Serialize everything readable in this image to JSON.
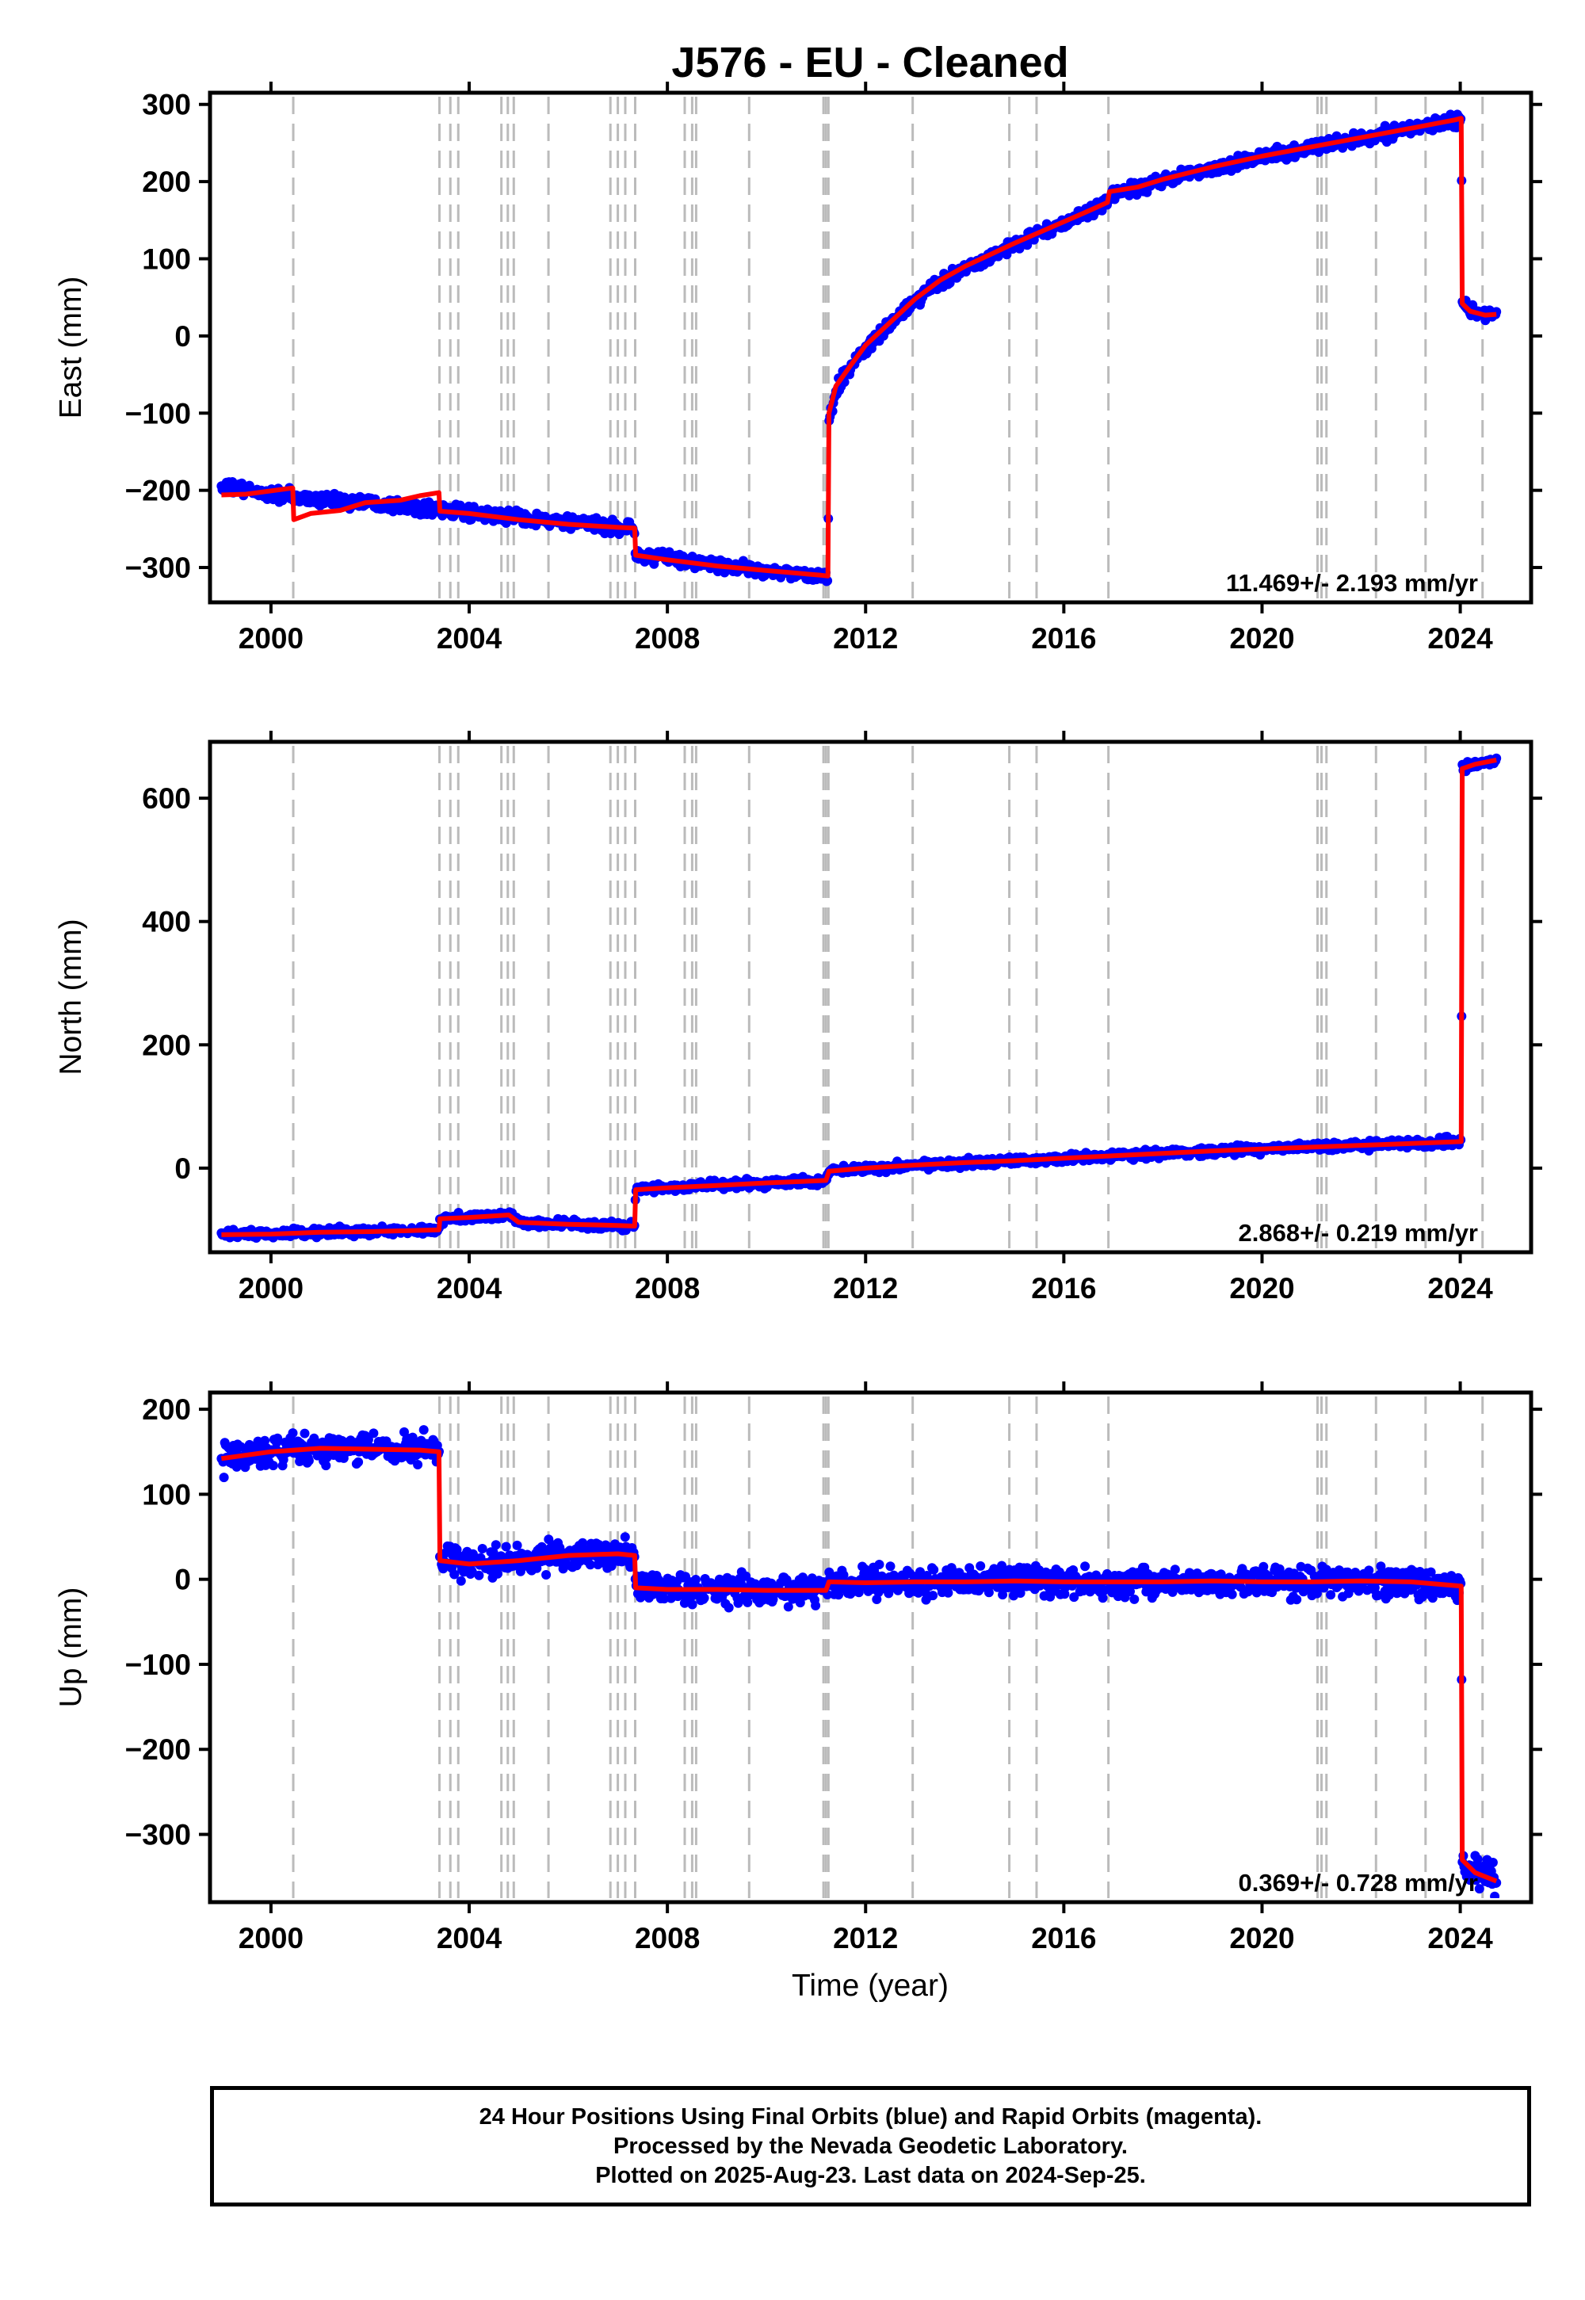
{
  "chart_data": {
    "type": "scatter",
    "title": "J576  - EU - Cleaned",
    "xlabel": "Time (year)",
    "xlim": [
      1998.85,
      2025.35
    ],
    "x_ticks": [
      2000,
      2004,
      2008,
      2012,
      2016,
      2020,
      2024
    ],
    "x_tick_labels": [
      "2000",
      "2004",
      "2008",
      "2012",
      "2016",
      "2020",
      "2024"
    ],
    "event_lines": [
      2000.45,
      2003.4,
      2003.62,
      2003.78,
      2004.65,
      2004.78,
      2004.9,
      2005.6,
      2006.85,
      2007.0,
      2007.15,
      2007.35,
      2008.35,
      2008.5,
      2008.58,
      2009.65,
      2011.15,
      2011.2,
      2011.25,
      2012.95,
      2014.9,
      2015.45,
      2016.9,
      2021.12,
      2021.2,
      2021.3,
      2022.3,
      2023.3,
      2024.45
    ],
    "series_colors": {
      "data": "#0000ff",
      "model": "#ff0000",
      "event_lines": "#bbbbbb"
    },
    "panels": [
      {
        "ylabel": "East (mm)",
        "ylim": [
          -340,
          310
        ],
        "y_ticks": [
          300,
          200,
          100,
          0,
          -100,
          -200,
          -300
        ],
        "y_tick_labels": [
          "300",
          "200",
          "100",
          "0",
          "−100",
          "−200",
          "−300"
        ],
        "rate_label": "11.469+/- 2.193 mm/yr",
        "noise": 6,
        "data": [
          [
            1999.0,
            -196
          ],
          [
            1999.5,
            -200
          ],
          [
            2000.0,
            -205
          ],
          [
            2000.44,
            -208
          ],
          [
            2000.46,
            -210
          ],
          [
            2001.0,
            -212
          ],
          [
            2002.0,
            -215
          ],
          [
            2003.0,
            -222
          ],
          [
            2003.39,
            -224
          ],
          [
            2003.41,
            -226
          ],
          [
            2004.0,
            -230
          ],
          [
            2005.0,
            -235
          ],
          [
            2006.0,
            -242
          ],
          [
            2007.0,
            -248
          ],
          [
            2007.34,
            -250
          ],
          [
            2007.36,
            -285
          ],
          [
            2008.0,
            -288
          ],
          [
            2009.0,
            -297
          ],
          [
            2010.0,
            -305
          ],
          [
            2011.1,
            -312
          ],
          [
            2011.24,
            -313
          ],
          [
            2011.26,
            -115
          ],
          [
            2011.4,
            -70
          ],
          [
            2011.7,
            -40
          ],
          [
            2012.0,
            -15
          ],
          [
            2012.5,
            15
          ],
          [
            2013.0,
            45
          ],
          [
            2013.5,
            70
          ],
          [
            2014.0,
            88
          ],
          [
            2014.5,
            103
          ],
          [
            2015.0,
            118
          ],
          [
            2015.5,
            132
          ],
          [
            2016.0,
            146
          ],
          [
            2016.5,
            160
          ],
          [
            2016.88,
            172
          ],
          [
            2016.92,
            185
          ],
          [
            2017.5,
            192
          ],
          [
            2018.0,
            202
          ],
          [
            2019.0,
            218
          ],
          [
            2020.0,
            232
          ],
          [
            2021.0,
            244
          ],
          [
            2022.0,
            256
          ],
          [
            2023.0,
            268
          ],
          [
            2023.9,
            280
          ],
          [
            2024.02,
            282
          ],
          [
            2024.04,
            45
          ],
          [
            2024.2,
            32
          ],
          [
            2024.5,
            27
          ],
          [
            2024.73,
            28
          ]
        ],
        "model": [
          [
            1999.0,
            -206
          ],
          [
            1999.5,
            -205
          ],
          [
            2000.44,
            -197
          ],
          [
            2000.46,
            -238
          ],
          [
            2000.8,
            -230
          ],
          [
            2001.4,
            -226
          ],
          [
            2001.9,
            -216
          ],
          [
            2002.6,
            -213
          ],
          [
            2003.0,
            -207
          ],
          [
            2003.39,
            -203
          ],
          [
            2003.41,
            -227
          ],
          [
            2004.0,
            -230
          ],
          [
            2005.0,
            -238
          ],
          [
            2006.0,
            -244
          ],
          [
            2007.0,
            -248
          ],
          [
            2007.34,
            -249
          ],
          [
            2007.36,
            -284
          ],
          [
            2008.0,
            -290
          ],
          [
            2009.0,
            -298
          ],
          [
            2010.0,
            -304
          ],
          [
            2011.1,
            -310
          ],
          [
            2011.24,
            -311
          ],
          [
            2011.26,
            -100
          ],
          [
            2011.4,
            -65
          ],
          [
            2011.7,
            -38
          ],
          [
            2012.0,
            -12
          ],
          [
            2012.5,
            18
          ],
          [
            2013.0,
            48
          ],
          [
            2013.5,
            72
          ],
          [
            2014.0,
            90
          ],
          [
            2014.5,
            105
          ],
          [
            2015.0,
            120
          ],
          [
            2015.5,
            134
          ],
          [
            2016.0,
            148
          ],
          [
            2016.5,
            162
          ],
          [
            2016.88,
            173
          ],
          [
            2016.92,
            187
          ],
          [
            2017.5,
            193
          ],
          [
            2018.0,
            203
          ],
          [
            2019.0,
            219
          ],
          [
            2020.0,
            233
          ],
          [
            2021.0,
            245
          ],
          [
            2022.0,
            257
          ],
          [
            2023.0,
            269
          ],
          [
            2023.9,
            280
          ],
          [
            2024.02,
            282
          ],
          [
            2024.04,
            42
          ],
          [
            2024.2,
            32
          ],
          [
            2024.5,
            27
          ],
          [
            2024.73,
            28
          ]
        ]
      },
      {
        "ylabel": "North (mm)",
        "ylim": [
          -130,
          685
        ],
        "y_ticks": [
          600,
          400,
          200,
          0
        ],
        "y_tick_labels": [
          "600",
          "400",
          "200",
          "0"
        ],
        "rate_label": "2.868+/- 0.219 mm/yr",
        "noise": 5,
        "data": [
          [
            1999.0,
            -108
          ],
          [
            2000.0,
            -107
          ],
          [
            2001.0,
            -104
          ],
          [
            2002.0,
            -103
          ],
          [
            2003.0,
            -101
          ],
          [
            2003.39,
            -100
          ],
          [
            2003.41,
            -82
          ],
          [
            2004.0,
            -80
          ],
          [
            2004.8,
            -76
          ],
          [
            2005.0,
            -88
          ],
          [
            2006.0,
            -91
          ],
          [
            2007.0,
            -93
          ],
          [
            2007.34,
            -94
          ],
          [
            2007.36,
            -35
          ],
          [
            2008.0,
            -32
          ],
          [
            2009.0,
            -28
          ],
          [
            2010.0,
            -24
          ],
          [
            2011.2,
            -20
          ],
          [
            2011.26,
            -5
          ],
          [
            2012.0,
            0
          ],
          [
            2013.0,
            5
          ],
          [
            2014.0,
            9
          ],
          [
            2015.0,
            12
          ],
          [
            2016.0,
            16
          ],
          [
            2017.0,
            20
          ],
          [
            2018.0,
            24
          ],
          [
            2019.0,
            28
          ],
          [
            2020.0,
            31
          ],
          [
            2021.0,
            34
          ],
          [
            2022.0,
            37
          ],
          [
            2023.0,
            40
          ],
          [
            2024.02,
            43
          ],
          [
            2024.04,
            648
          ],
          [
            2024.3,
            655
          ],
          [
            2024.73,
            662
          ]
        ],
        "model": [
          [
            1999.0,
            -108
          ],
          [
            2000.0,
            -107
          ],
          [
            2001.0,
            -104
          ],
          [
            2002.0,
            -103
          ],
          [
            2003.0,
            -101
          ],
          [
            2003.39,
            -100
          ],
          [
            2003.41,
            -82
          ],
          [
            2004.0,
            -80
          ],
          [
            2004.8,
            -76
          ],
          [
            2005.0,
            -88
          ],
          [
            2006.0,
            -91
          ],
          [
            2007.0,
            -93
          ],
          [
            2007.34,
            -94
          ],
          [
            2007.36,
            -35
          ],
          [
            2008.0,
            -32
          ],
          [
            2009.0,
            -28
          ],
          [
            2010.0,
            -24
          ],
          [
            2011.2,
            -20
          ],
          [
            2011.26,
            -5
          ],
          [
            2012.0,
            0
          ],
          [
            2013.0,
            5
          ],
          [
            2014.0,
            9
          ],
          [
            2015.0,
            12
          ],
          [
            2016.0,
            16
          ],
          [
            2017.0,
            20
          ],
          [
            2018.0,
            24
          ],
          [
            2019.0,
            28
          ],
          [
            2020.0,
            31
          ],
          [
            2021.0,
            34
          ],
          [
            2022.0,
            37
          ],
          [
            2023.0,
            40
          ],
          [
            2024.02,
            43
          ],
          [
            2024.04,
            648
          ],
          [
            2024.3,
            655
          ],
          [
            2024.73,
            662
          ]
        ]
      },
      {
        "ylabel": "Up (mm)",
        "ylim": [
          -375,
          215
        ],
        "y_ticks": [
          200,
          100,
          0,
          -100,
          -200,
          -300
        ],
        "y_tick_labels": [
          "200",
          "100",
          "0",
          "−100",
          "−200",
          "−300"
        ],
        "rate_label": "0.369+/- 0.728 mm/yr",
        "noise": 12,
        "data": [
          [
            1999.0,
            140
          ],
          [
            2000.0,
            152
          ],
          [
            2001.0,
            155
          ],
          [
            2002.0,
            153
          ],
          [
            2003.0,
            152
          ],
          [
            2003.39,
            150
          ],
          [
            2003.41,
            22
          ],
          [
            2004.0,
            18
          ],
          [
            2005.0,
            22
          ],
          [
            2006.0,
            28
          ],
          [
            2007.0,
            30
          ],
          [
            2007.34,
            28
          ],
          [
            2007.36,
            -10
          ],
          [
            2008.0,
            -12
          ],
          [
            2009.0,
            -12
          ],
          [
            2010.0,
            -13
          ],
          [
            2011.2,
            -13
          ],
          [
            2011.26,
            -3
          ],
          [
            2012.0,
            -4
          ],
          [
            2013.0,
            -3
          ],
          [
            2014.0,
            -3
          ],
          [
            2015.0,
            -2
          ],
          [
            2016.0,
            -3
          ],
          [
            2017.0,
            -3
          ],
          [
            2018.0,
            -3
          ],
          [
            2019.0,
            -2
          ],
          [
            2020.0,
            -3
          ],
          [
            2021.0,
            -3
          ],
          [
            2022.0,
            -2
          ],
          [
            2023.0,
            -3
          ],
          [
            2024.02,
            -8
          ],
          [
            2024.04,
            -330
          ],
          [
            2024.3,
            -345
          ],
          [
            2024.73,
            -355
          ]
        ],
        "model": [
          [
            1999.0,
            142
          ],
          [
            2000.0,
            150
          ],
          [
            2001.0,
            154
          ],
          [
            2002.0,
            153
          ],
          [
            2003.0,
            152
          ],
          [
            2003.39,
            150
          ],
          [
            2003.41,
            22
          ],
          [
            2004.0,
            18
          ],
          [
            2005.0,
            22
          ],
          [
            2006.0,
            28
          ],
          [
            2007.0,
            30
          ],
          [
            2007.34,
            28
          ],
          [
            2007.36,
            -10
          ],
          [
            2008.0,
            -12
          ],
          [
            2009.0,
            -12
          ],
          [
            2010.0,
            -13
          ],
          [
            2011.2,
            -13
          ],
          [
            2011.26,
            -3
          ],
          [
            2012.0,
            -4
          ],
          [
            2013.0,
            -3
          ],
          [
            2014.0,
            -3
          ],
          [
            2015.0,
            -2
          ],
          [
            2016.0,
            -3
          ],
          [
            2017.0,
            -3
          ],
          [
            2018.0,
            -3
          ],
          [
            2019.0,
            -2
          ],
          [
            2020.0,
            -3
          ],
          [
            2021.0,
            -3
          ],
          [
            2022.0,
            -2
          ],
          [
            2023.0,
            -3
          ],
          [
            2024.02,
            -8
          ],
          [
            2024.04,
            -330
          ],
          [
            2024.3,
            -345
          ],
          [
            2024.73,
            -355
          ]
        ]
      }
    ]
  },
  "footer": {
    "line1": "24 Hour Positions Using Final Orbits (blue) and Rapid Orbits (magenta).",
    "line2": "Processed by the Nevada Geodetic Laboratory.",
    "line3": "Plotted on 2025-Aug-23. Last data on 2024-Sep-25."
  }
}
